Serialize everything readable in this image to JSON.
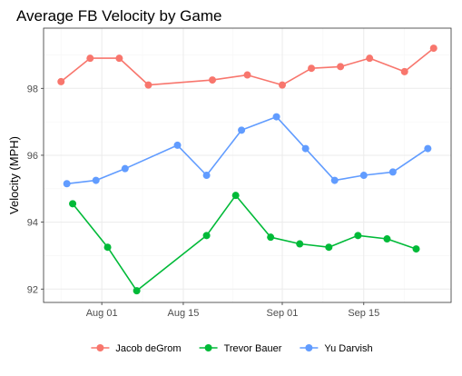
{
  "chart_data": {
    "type": "line",
    "title": "Average FB Velocity by Game",
    "xlabel": "",
    "ylabel": "Velocity (MPH)",
    "xaxis_type": "date",
    "xlim": [
      "2019-07-22",
      "2019-09-30"
    ],
    "ylim": [
      91.6,
      99.8
    ],
    "x_ticks": [
      {
        "date": "2019-08-01",
        "label": "Aug 01"
      },
      {
        "date": "2019-08-15",
        "label": "Aug 15"
      },
      {
        "date": "2019-09-01",
        "label": "Sep 01"
      },
      {
        "date": "2019-09-15",
        "label": "Sep 15"
      }
    ],
    "y_ticks": [
      92,
      94,
      96,
      98
    ],
    "grid": true,
    "legend_position": "bottom",
    "series": [
      {
        "name": "Jacob deGrom",
        "color": "#F8766D",
        "points": [
          {
            "x": "2019-07-25",
            "y": 98.2
          },
          {
            "x": "2019-07-30",
            "y": 98.9
          },
          {
            "x": "2019-08-04",
            "y": 98.9
          },
          {
            "x": "2019-08-09",
            "y": 98.1
          },
          {
            "x": "2019-08-20",
            "y": 98.25
          },
          {
            "x": "2019-08-26",
            "y": 98.4
          },
          {
            "x": "2019-09-01",
            "y": 98.1
          },
          {
            "x": "2019-09-06",
            "y": 98.6
          },
          {
            "x": "2019-09-11",
            "y": 98.65
          },
          {
            "x": "2019-09-16",
            "y": 98.9
          },
          {
            "x": "2019-09-22",
            "y": 98.5
          },
          {
            "x": "2019-09-27",
            "y": 99.2
          }
        ]
      },
      {
        "name": "Trevor Bauer",
        "color": "#00BA38",
        "points": [
          {
            "x": "2019-07-27",
            "y": 94.55
          },
          {
            "x": "2019-08-02",
            "y": 93.25
          },
          {
            "x": "2019-08-07",
            "y": 91.95
          },
          {
            "x": "2019-08-19",
            "y": 93.6
          },
          {
            "x": "2019-08-24",
            "y": 94.8
          },
          {
            "x": "2019-08-30",
            "y": 93.55
          },
          {
            "x": "2019-09-04",
            "y": 93.35
          },
          {
            "x": "2019-09-09",
            "y": 93.25
          },
          {
            "x": "2019-09-14",
            "y": 93.6
          },
          {
            "x": "2019-09-19",
            "y": 93.5
          },
          {
            "x": "2019-09-24",
            "y": 93.2
          }
        ]
      },
      {
        "name": "Yu Darvish",
        "color": "#619CFF",
        "points": [
          {
            "x": "2019-07-26",
            "y": 95.15
          },
          {
            "x": "2019-07-31",
            "y": 95.25
          },
          {
            "x": "2019-08-05",
            "y": 95.6
          },
          {
            "x": "2019-08-14",
            "y": 96.3
          },
          {
            "x": "2019-08-19",
            "y": 95.4
          },
          {
            "x": "2019-08-25",
            "y": 96.75
          },
          {
            "x": "2019-08-31",
            "y": 97.15
          },
          {
            "x": "2019-09-05",
            "y": 96.2
          },
          {
            "x": "2019-09-10",
            "y": 95.25
          },
          {
            "x": "2019-09-15",
            "y": 95.4
          },
          {
            "x": "2019-09-20",
            "y": 95.5
          },
          {
            "x": "2019-09-26",
            "y": 96.2
          }
        ]
      }
    ]
  }
}
